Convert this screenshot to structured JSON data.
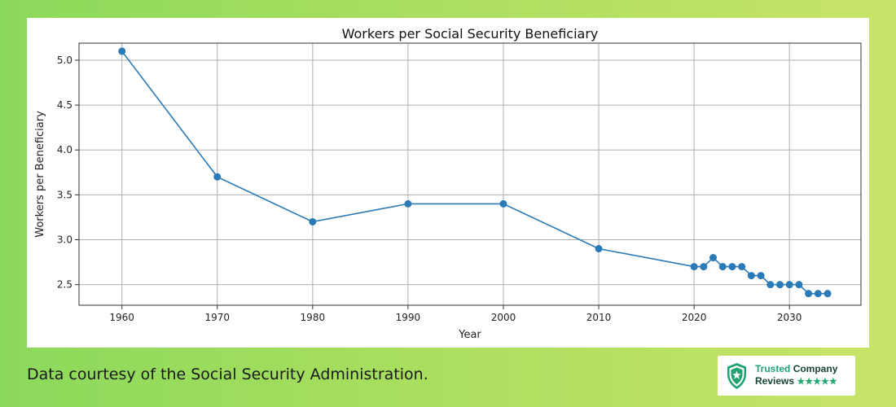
{
  "chart_data": {
    "type": "line",
    "title": "Workers per Social Security Beneficiary",
    "xlabel": "Year",
    "ylabel": "Workers per Beneficiary",
    "xlim": [
      1955.5,
      2037.5
    ],
    "ylim": [
      2.27,
      5.19
    ],
    "xticks": [
      1960,
      1970,
      1980,
      1990,
      2000,
      2010,
      2020,
      2030
    ],
    "yticks": [
      2.5,
      3.0,
      3.5,
      4.0,
      4.5,
      5.0
    ],
    "ytick_labels": [
      "2.5",
      "3.0",
      "3.5",
      "4.0",
      "4.5",
      "5.0"
    ],
    "grid": true,
    "color": "#2a7ab8",
    "series": [
      {
        "x": [
          1960,
          1970,
          1980,
          1990,
          2000,
          2010,
          2020,
          2021,
          2022,
          2023,
          2024,
          2025,
          2026,
          2027,
          2028,
          2029,
          2030,
          2031,
          2032,
          2033,
          2034
        ],
        "values": [
          5.1,
          3.7,
          3.2,
          3.4,
          3.4,
          2.9,
          2.7,
          2.7,
          2.8,
          2.7,
          2.7,
          2.7,
          2.6,
          2.6,
          2.5,
          2.5,
          2.5,
          2.5,
          2.4,
          2.4,
          2.4
        ]
      }
    ]
  },
  "caption": "Data courtesy of the Social Security Administration.",
  "badge": {
    "line1_a": "Trusted",
    "line1_b": "Company",
    "line2": "Reviews",
    "stars": "★★★★★",
    "icon": "shield-star-icon"
  }
}
